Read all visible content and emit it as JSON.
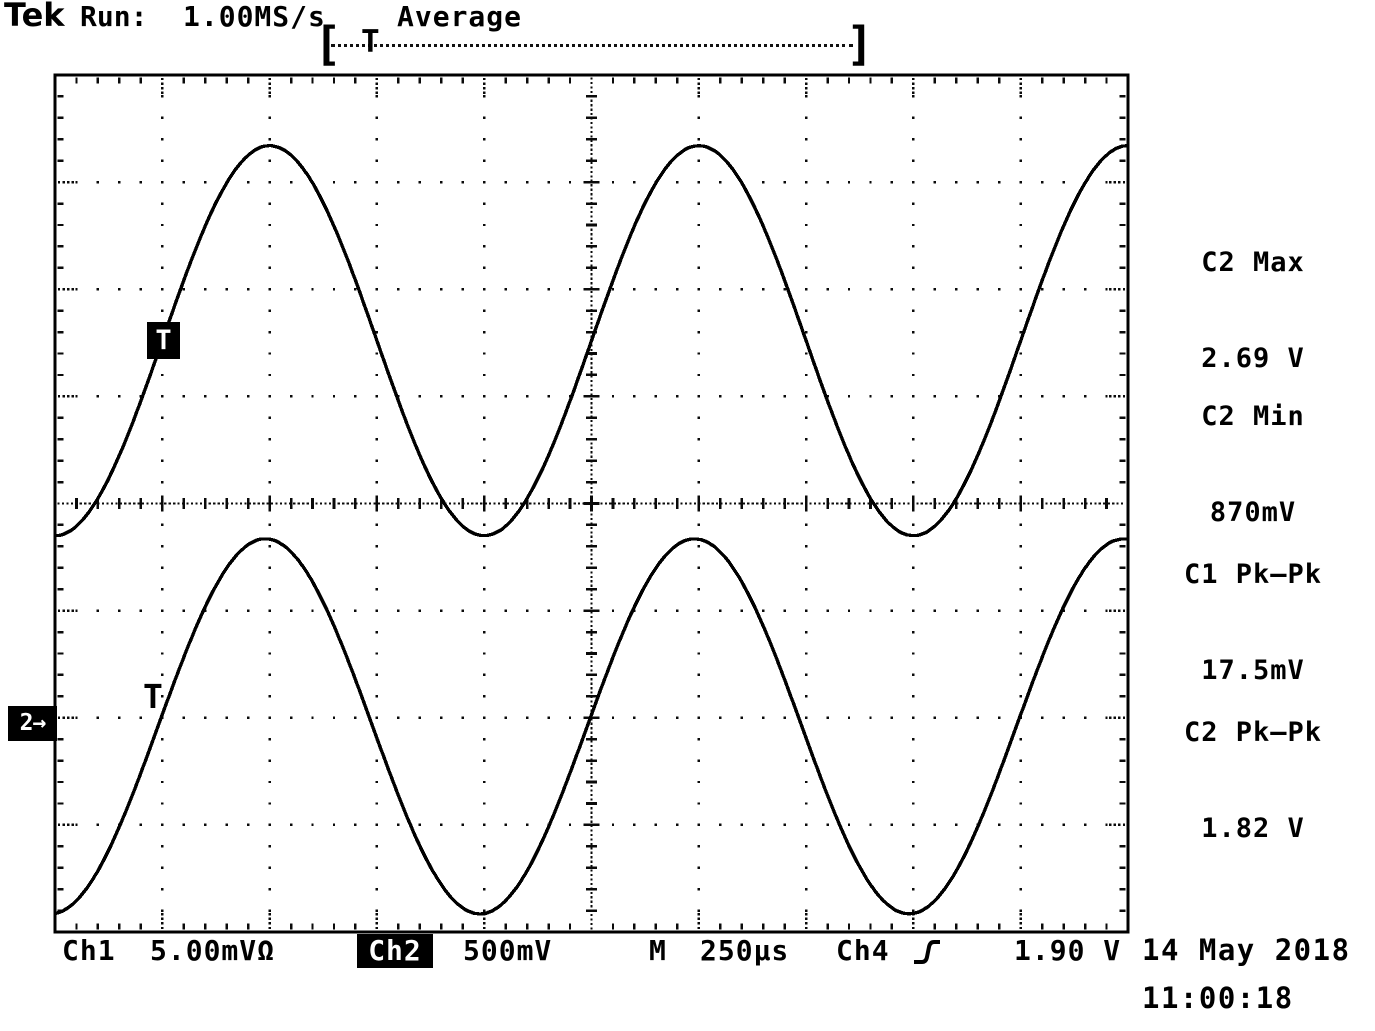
{
  "header": {
    "logo": "Tek",
    "acquisition_status": "Run:",
    "sample_rate": "1.00MS/s",
    "acquisition_mode": "Average"
  },
  "trigger_record_bar": {
    "left_bracket": "[",
    "trigger_position_marker": "T",
    "right_bracket": "]"
  },
  "markers": {
    "ch2_trigger_point": "T",
    "ch1_trigger_point": "T",
    "ch2_ground": "2→"
  },
  "measurements": [
    {
      "label": "C2 Max",
      "value": "2.69 V"
    },
    {
      "label": "C2 Min",
      "value": "870mV"
    },
    {
      "label": "C1 Pk–Pk",
      "value": "17.5mV"
    },
    {
      "label": "C2 Pk–Pk",
      "value": "1.82 V"
    }
  ],
  "status_bar": {
    "ch1_label": "Ch1",
    "ch1_scale": "5.00mVΩ",
    "ch2_label": "Ch2",
    "ch2_scale": "500mV",
    "timebase_label": "M",
    "timebase": "250µs",
    "trigger_source": "Ch4",
    "trigger_edge_icon": "rising-edge",
    "trigger_level": "1.90 V"
  },
  "datetime": {
    "date": "14 May 2018",
    "time": "11:00:18"
  },
  "colors": {
    "foreground": "#000000",
    "background": "#ffffff"
  },
  "chart_data": {
    "type": "line",
    "title": "Oscilloscope dual sine traces",
    "x_divisions": 10,
    "y_divisions": 8,
    "timebase_per_div": "250µs",
    "grid": "dotted graticule, center crosshair with minor ticks",
    "series": [
      {
        "name": "Ch2",
        "scale_per_div": "500mV",
        "center_div": 2.48,
        "amplitude_div": 1.82,
        "period_div": 4.0,
        "crest_at_div": 2.0,
        "measured": {
          "max": "2.69 V",
          "min": "870mV",
          "pk_pk": "1.82 V"
        }
      },
      {
        "name": "Ch1",
        "scale_per_div": "5.00mV",
        "center_div": 6.08,
        "amplitude_div": 1.75,
        "period_div": 4.0,
        "crest_at_div": 1.96,
        "measured": {
          "pk_pk": "17.5mV"
        }
      }
    ],
    "trigger": {
      "source": "Ch4",
      "edge": "rising",
      "level": "1.90 V",
      "time_position_div": 0.99,
      "ch2_ground_position_div": 6.05
    }
  }
}
